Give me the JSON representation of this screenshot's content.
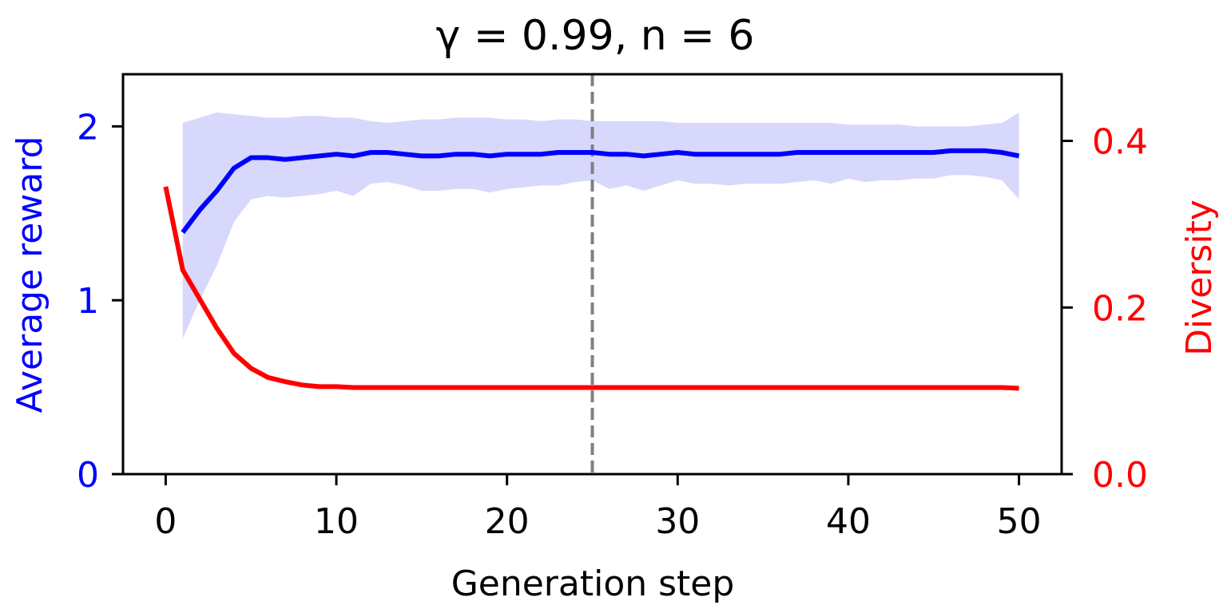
{
  "chart_data": {
    "type": "line",
    "title": "γ = 0.99, n = 6",
    "xlabel": "Generation step",
    "ylabel_left": "Average reward",
    "ylabel_right": "Diversity",
    "xlim": [
      -2.5,
      52.5
    ],
    "ylim_left": [
      0,
      2.3
    ],
    "ylim_right": [
      0,
      0.48
    ],
    "xticks": [
      0,
      10,
      20,
      30,
      40,
      50
    ],
    "yticks_left": [
      0,
      1,
      2
    ],
    "yticks_right": [
      0.0,
      0.2,
      0.4
    ],
    "xtick_labels": [
      "0",
      "10",
      "20",
      "30",
      "40",
      "50"
    ],
    "ytick_left_labels": [
      "0",
      "1",
      "2"
    ],
    "ytick_right_labels": [
      "0.0",
      "0.2",
      "0.4"
    ],
    "grid": false,
    "colors": {
      "reward": "#0000ff",
      "reward_band": "#d8d8fc",
      "diversity": "#ff0000",
      "vline": "#808080",
      "axis": "#000000"
    },
    "vline_x": 25,
    "series": [
      {
        "axis": "left",
        "x": [
          1,
          2,
          3,
          4,
          5,
          6,
          7,
          8,
          9,
          10,
          11,
          12,
          13,
          14,
          15,
          16,
          17,
          18,
          19,
          20,
          21,
          22,
          23,
          24,
          25,
          26,
          27,
          28,
          29,
          30,
          31,
          32,
          33,
          34,
          35,
          36,
          37,
          38,
          39,
          40,
          41,
          42,
          43,
          44,
          45,
          46,
          47,
          48,
          49,
          50
        ],
        "values": [
          1.39,
          1.52,
          1.63,
          1.76,
          1.82,
          1.82,
          1.81,
          1.82,
          1.83,
          1.84,
          1.83,
          1.85,
          1.85,
          1.84,
          1.83,
          1.83,
          1.84,
          1.84,
          1.83,
          1.84,
          1.84,
          1.84,
          1.85,
          1.85,
          1.85,
          1.84,
          1.84,
          1.83,
          1.84,
          1.85,
          1.84,
          1.84,
          1.84,
          1.84,
          1.84,
          1.84,
          1.85,
          1.85,
          1.85,
          1.85,
          1.85,
          1.85,
          1.85,
          1.85,
          1.85,
          1.86,
          1.86,
          1.86,
          1.85,
          1.83
        ],
        "band_upper": [
          2.02,
          2.05,
          2.08,
          2.07,
          2.06,
          2.05,
          2.05,
          2.06,
          2.06,
          2.05,
          2.05,
          2.03,
          2.02,
          2.03,
          2.04,
          2.04,
          2.05,
          2.05,
          2.05,
          2.04,
          2.04,
          2.03,
          2.04,
          2.04,
          2.03,
          2.03,
          2.03,
          2.03,
          2.03,
          2.02,
          2.02,
          2.02,
          2.02,
          2.02,
          2.02,
          2.02,
          2.02,
          2.02,
          2.02,
          2.01,
          2.01,
          2.01,
          2.01,
          2.0,
          2.0,
          2.0,
          2.0,
          2.01,
          2.02,
          2.08
        ],
        "band_lower": [
          0.78,
          1.0,
          1.2,
          1.45,
          1.58,
          1.6,
          1.59,
          1.6,
          1.61,
          1.63,
          1.6,
          1.67,
          1.68,
          1.66,
          1.63,
          1.63,
          1.64,
          1.64,
          1.62,
          1.64,
          1.65,
          1.66,
          1.66,
          1.68,
          1.69,
          1.64,
          1.66,
          1.63,
          1.66,
          1.69,
          1.67,
          1.67,
          1.66,
          1.67,
          1.67,
          1.67,
          1.68,
          1.69,
          1.67,
          1.7,
          1.68,
          1.69,
          1.69,
          1.7,
          1.7,
          1.72,
          1.72,
          1.71,
          1.69,
          1.58
        ]
      },
      {
        "axis": "right",
        "x": [
          0,
          1,
          2,
          3,
          4,
          5,
          6,
          7,
          8,
          9,
          10,
          11,
          12,
          13,
          14,
          15,
          16,
          17,
          18,
          19,
          20,
          21,
          22,
          23,
          24,
          25,
          26,
          27,
          28,
          29,
          30,
          31,
          32,
          33,
          34,
          35,
          36,
          37,
          38,
          39,
          40,
          41,
          42,
          43,
          44,
          45,
          46,
          47,
          48,
          49,
          50
        ],
        "values": [
          0.345,
          0.245,
          0.21,
          0.175,
          0.145,
          0.127,
          0.116,
          0.111,
          0.107,
          0.105,
          0.105,
          0.104,
          0.104,
          0.104,
          0.104,
          0.104,
          0.104,
          0.104,
          0.104,
          0.104,
          0.104,
          0.104,
          0.104,
          0.104,
          0.104,
          0.104,
          0.104,
          0.104,
          0.104,
          0.104,
          0.104,
          0.104,
          0.104,
          0.104,
          0.104,
          0.104,
          0.104,
          0.104,
          0.104,
          0.104,
          0.104,
          0.104,
          0.104,
          0.104,
          0.104,
          0.104,
          0.104,
          0.104,
          0.104,
          0.104,
          0.103
        ]
      }
    ]
  }
}
